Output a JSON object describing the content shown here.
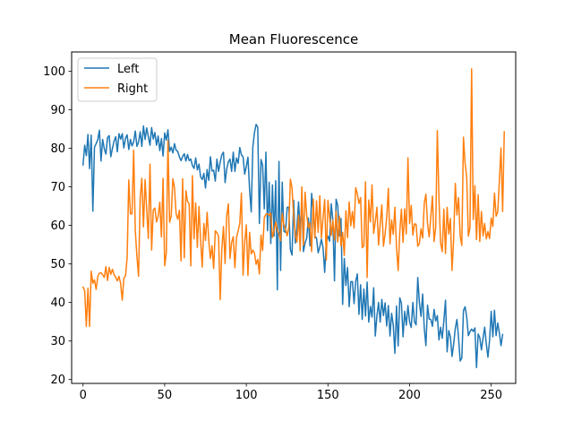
{
  "chart_data": {
    "type": "line",
    "title": "Mean Fluorescence",
    "xlabel": "",
    "ylabel": "",
    "xlim": [
      -7,
      265
    ],
    "ylim": [
      19,
      105
    ],
    "xticks": [
      0,
      50,
      100,
      150,
      200,
      250
    ],
    "yticks": [
      20,
      30,
      40,
      50,
      60,
      70,
      80,
      90,
      100
    ],
    "grid": false,
    "legend_position": "top-left",
    "x_step": 1,
    "series": [
      {
        "name": "Left",
        "color": "#1f77b4",
        "values": [
          75.7,
          80.8,
          78.1,
          83.6,
          74.7,
          83.4,
          63.7,
          80.3,
          81.2,
          82.2,
          84.7,
          76.7,
          82.3,
          79.9,
          78.5,
          82.8,
          83.3,
          77.8,
          80.0,
          81.9,
          83.0,
          79.1,
          83.8,
          82.4,
          83.8,
          80.1,
          82.6,
          83.5,
          79.7,
          82.3,
          80.6,
          81.7,
          84.5,
          80.5,
          81.6,
          84.3,
          80.5,
          85.8,
          82.3,
          85.3,
          83.0,
          80.8,
          85.4,
          82.4,
          84.1,
          80.8,
          83.2,
          79.4,
          82.5,
          78.0,
          84.0,
          82.1,
          84.8,
          79.2,
          80.3,
          78.8,
          81.2,
          79.5,
          79.2,
          77.8,
          76.8,
          77.9,
          78.6,
          76.7,
          78.4,
          76.8,
          77.2,
          75.5,
          74.8,
          77.5,
          74.4,
          75.9,
          72.6,
          71.9,
          73.5,
          69.7,
          74.5,
          71.7,
          77.8,
          74.1,
          74.3,
          71.5,
          77.2,
          74.0,
          76.4,
          78.3,
          79.0,
          71.1,
          74.7,
          76.5,
          77.2,
          74.0,
          79.0,
          74.0,
          77.5,
          76.1,
          80.2,
          78.3,
          77.8,
          73.3,
          75.3,
          77.7,
          69.4,
          63.5,
          80.3,
          84.1,
          86.2,
          85.5,
          60.5,
          77.1,
          75.6,
          64.3,
          79.0,
          58.6,
          71.2,
          55.3,
          70.5,
          57.2,
          71.6,
          43.3,
          76.6,
          48.3,
          71.2,
          58.5,
          58.2,
          64.7,
          64.7,
          53.7,
          52.3,
          66.5,
          55.4,
          59.6,
          66.1,
          58.4,
          66.6,
          53.2,
          55.5,
          56.7,
          61.9,
          54.7,
          68.3,
          63.8,
          57.3,
          56.7,
          52.9,
          54.4,
          56.4,
          54.2,
          47.8,
          55.7,
          57.2,
          55.9,
          65.6,
          61.4,
          45.6,
          66.8,
          65.1,
          57.3,
          61.8,
          39.5,
          51.4,
          44.4,
          49.1,
          38.9,
          45.4,
          45.4,
          39.7,
          45.5,
          47.4,
          36.9,
          44.6,
          35.6,
          43.5,
          36.5,
          45.3,
          34.9,
          39.0,
          36.2,
          43.8,
          31.3,
          36.5,
          40.0,
          34.9,
          40.8,
          36.6,
          39.9,
          33.9,
          39.2,
          31.3,
          37.2,
          34.1,
          26.8,
          39.1,
          28.7,
          41.2,
          39.8,
          31.1,
          37.7,
          34.1,
          39.2,
          35.0,
          33.5,
          40.0,
          35.0,
          34.2,
          46.5,
          40.1,
          36.4,
          42.2,
          33.3,
          28.8,
          39.3,
          35.7,
          35.6,
          33.8,
          38.2,
          35.2,
          36.6,
          30.3,
          33.6,
          30.7,
          35.2,
          40.6,
          27.2,
          32.7,
          31.1,
          26.0,
          29.2,
          33.3,
          35.6,
          30.8,
          24.8,
          25.6,
          37.9,
          38.9,
          36.2,
          31.4,
          32.4,
          33.1,
          32.5,
          33.4,
          23.1,
          31.8,
          30.9,
          27.7,
          30.8,
          33.6,
          29.2,
          25.8,
          30.2,
          37.7,
          31.1,
          38.0,
          31.4,
          34.7,
          32.1,
          28.8,
          31.7
        ]
      },
      {
        "name": "Right",
        "color": "#ff7f0e",
        "values": [
          44.0,
          43.1,
          33.8,
          43.7,
          33.8,
          48.1,
          45.0,
          45.9,
          43.4,
          46.7,
          47.6,
          47.7,
          47.2,
          46.5,
          49.3,
          45.7,
          49.1,
          47.3,
          48.6,
          47.2,
          46.5,
          45.6,
          46.8,
          45.0,
          40.6,
          46.3,
          46.9,
          51.7,
          71.8,
          63.0,
          63.0,
          79.5,
          58.6,
          51.9,
          46.8,
          67.2,
          72.2,
          59.6,
          71.9,
          64.0,
          56.6,
          75.9,
          53.6,
          64.0,
          64.5,
          60.9,
          62.4,
          66.0,
          57.0,
          72.2,
          49.5,
          52.9,
          82.0,
          60.8,
          62.4,
          72.1,
          69.8,
          63.0,
          61.6,
          63.9,
          50.8,
          72.1,
          51.6,
          69.0,
          66.2,
          65.6,
          49.5,
          72.9,
          56.5,
          65.8,
          54.3,
          64.9,
          56.2,
          49.2,
          60.5,
          56.1,
          63.4,
          56.1,
          51.4,
          54.7,
          48.8,
          58.6,
          58.1,
          57.2,
          40.7,
          53.8,
          59.7,
          50.1,
          62.4,
          65.6,
          51.4,
          55.6,
          57.1,
          49.0,
          56.9,
          58.6,
          60.5,
          68.4,
          47.1,
          55.5,
          60.1,
          47.0,
          58.2,
          52.6,
          53.6,
          52.8,
          49.9,
          51.2,
          47.4,
          57.5,
          53.5,
          62.0,
          62.9,
          63.0,
          62.6,
          63.2,
          56.9,
          58.7,
          60.9,
          58.9,
          57.9,
          56.0,
          63.1,
          60.2,
          59.3,
          57.3,
          59.4,
          72.0,
          69.7,
          62.3,
          57.4,
          55.7,
          62.6,
          53.4,
          70.0,
          54.8,
          68.6,
          62.6,
          59.4,
          60.6,
          53.2,
          66.8,
          56.7,
          66.4,
          58.2,
          67.7,
          56.7,
          62.0,
          66.7,
          51.0,
          66.5,
          62.2,
          57.4,
          61.4,
          56.2,
          63.6,
          55.7,
          62.4,
          54.6,
          58.2,
          52.2,
          63.8,
          56.8,
          66.1,
          59.9,
          63.6,
          59.3,
          69.8,
          68.2,
          65.7,
          67.2,
          54.2,
          54.7,
          71.3,
          46.5,
          66.6,
          60.9,
          70.5,
          57.9,
          61.0,
          64.7,
          54.9,
          60.4,
          65.3,
          54.6,
          57.8,
          62.0,
          69.6,
          55.2,
          61.4,
          57.7,
          64.7,
          54.4,
          48.3,
          58.3,
          64.2,
          55.6,
          64.3,
          57.8,
          77.5,
          60.5,
          65.2,
          57.5,
          60.4,
          60.3,
          54.6,
          55.3,
          59.1,
          56.7,
          65.7,
          68.1,
          60.5,
          57.0,
          62.1,
          67.6,
          55.8,
          59.4,
          84.6,
          67.0,
          55.5,
          53.2,
          64.2,
          52.7,
          64.7,
          57.8,
          61.8,
          48.3,
          56.6,
          70.9,
          62.7,
          67.2,
          57.3,
          54.8,
          82.9,
          76.1,
          72.5,
          57.2,
          59.5,
          100.6,
          61.5,
          70.3,
          56.3,
          68.0,
          55.8,
          63.6,
          57.3,
          60.5,
          56.5,
          58.4,
          56.6,
          61.9,
          59.7,
          68.4,
          62.4,
          63.5,
          71.6,
          80.1,
          63.6,
          84.3
        ]
      }
    ]
  }
}
